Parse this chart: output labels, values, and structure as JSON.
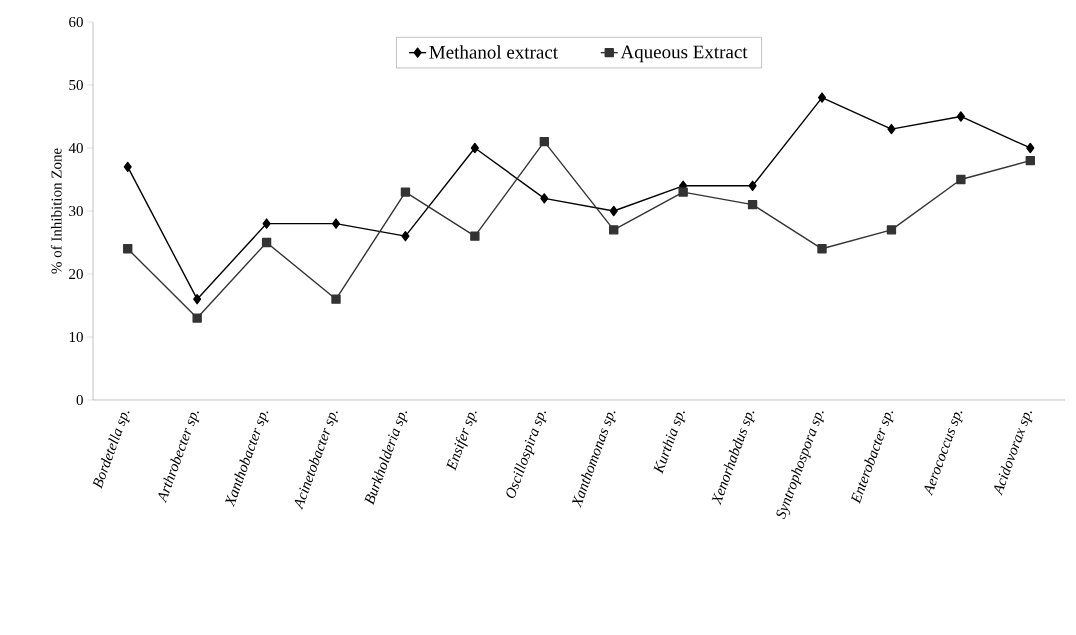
{
  "chart_data": {
    "type": "line",
    "ylabel": "% of Inhibition Zone",
    "categories": [
      "Bordetella sp.",
      "Arthrobecter sp.",
      "Xanthobacter sp.",
      "Acinetobacter sp.",
      "Burkholderia sp.",
      "Ensifer sp.",
      "Oscillospira sp.",
      "Xanthomonas sp.",
      "Kurthia sp.",
      "Xenorhabdus sp.",
      "Syntrophospora sp.",
      "Enterobacter sp.",
      "Aerococcus sp.",
      "Acidovorax sp."
    ],
    "series": [
      {
        "name": "Methanol extract",
        "color": "#000000",
        "marker": "diamond",
        "values": [
          37,
          16,
          28,
          28,
          26,
          40,
          32,
          30,
          34,
          34,
          48,
          43,
          45,
          40
        ]
      },
      {
        "name": "Aqueous Extract",
        "color": "#333333",
        "marker": "square",
        "values": [
          24,
          13,
          25,
          16,
          33,
          26,
          41,
          27,
          33,
          31,
          24,
          27,
          35,
          38
        ]
      }
    ],
    "ylim": [
      0,
      60
    ],
    "yticks": [
      0,
      10,
      20,
      30,
      40,
      50,
      60
    ],
    "legend": "top",
    "grid": false,
    "line_style": "solid"
  }
}
